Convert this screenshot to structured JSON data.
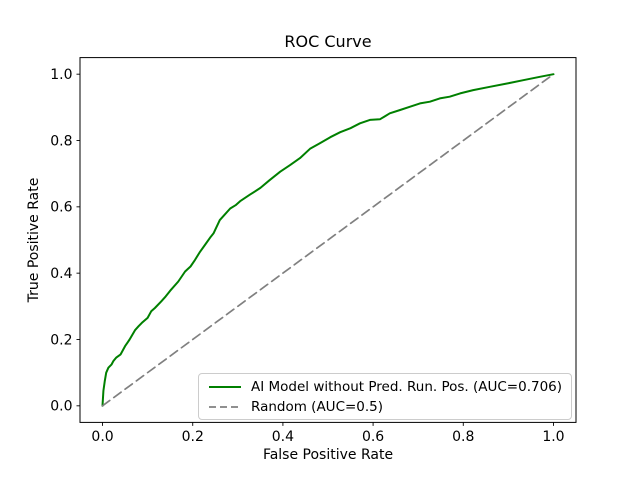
{
  "chart_data": {
    "type": "line",
    "title": "ROC Curve",
    "xlabel": "False Positive Rate",
    "ylabel": "True Positive Rate",
    "xlim": [
      -0.05,
      1.05
    ],
    "ylim": [
      -0.05,
      1.05
    ],
    "xticks": {
      "values": [
        0.0,
        0.2,
        0.4,
        0.6,
        0.8,
        1.0
      ],
      "labels": [
        "0.0",
        "0.2",
        "0.4",
        "0.6",
        "0.8",
        "1.0"
      ]
    },
    "yticks": {
      "values": [
        0.0,
        0.2,
        0.4,
        0.6,
        0.8,
        1.0
      ],
      "labels": [
        "0.0",
        "0.2",
        "0.4",
        "0.6",
        "0.8",
        "1.0"
      ]
    },
    "grid": false,
    "legend": {
      "position": "lower right inside axes",
      "border_color": "#cccccc",
      "background": "#ffffff"
    },
    "series": [
      {
        "name": "AI Model without Pred. Run. Pos. (AUC=0.706)",
        "auc": 0.706,
        "color": "#008000",
        "line_style": "solid",
        "line_width": 2,
        "points": [
          [
            0.0,
            0.0
          ],
          [
            0.002,
            0.045
          ],
          [
            0.005,
            0.075
          ],
          [
            0.008,
            0.1
          ],
          [
            0.013,
            0.115
          ],
          [
            0.02,
            0.125
          ],
          [
            0.024,
            0.135
          ],
          [
            0.03,
            0.145
          ],
          [
            0.04,
            0.155
          ],
          [
            0.05,
            0.18
          ],
          [
            0.06,
            0.2
          ],
          [
            0.072,
            0.228
          ],
          [
            0.08,
            0.24
          ],
          [
            0.087,
            0.25
          ],
          [
            0.1,
            0.265
          ],
          [
            0.108,
            0.285
          ],
          [
            0.116,
            0.295
          ],
          [
            0.13,
            0.315
          ],
          [
            0.14,
            0.33
          ],
          [
            0.15,
            0.347
          ],
          [
            0.168,
            0.375
          ],
          [
            0.183,
            0.405
          ],
          [
            0.195,
            0.42
          ],
          [
            0.205,
            0.44
          ],
          [
            0.215,
            0.462
          ],
          [
            0.227,
            0.485
          ],
          [
            0.24,
            0.51
          ],
          [
            0.246,
            0.52
          ],
          [
            0.26,
            0.56
          ],
          [
            0.27,
            0.575
          ],
          [
            0.283,
            0.595
          ],
          [
            0.295,
            0.605
          ],
          [
            0.305,
            0.617
          ],
          [
            0.327,
            0.637
          ],
          [
            0.35,
            0.657
          ],
          [
            0.37,
            0.68
          ],
          [
            0.394,
            0.706
          ],
          [
            0.416,
            0.726
          ],
          [
            0.438,
            0.747
          ],
          [
            0.46,
            0.775
          ],
          [
            0.48,
            0.79
          ],
          [
            0.505,
            0.81
          ],
          [
            0.527,
            0.825
          ],
          [
            0.55,
            0.837
          ],
          [
            0.571,
            0.852
          ],
          [
            0.593,
            0.862
          ],
          [
            0.615,
            0.864
          ],
          [
            0.625,
            0.872
          ],
          [
            0.637,
            0.882
          ],
          [
            0.66,
            0.892
          ],
          [
            0.682,
            0.902
          ],
          [
            0.704,
            0.912
          ],
          [
            0.726,
            0.917
          ],
          [
            0.748,
            0.927
          ],
          [
            0.77,
            0.932
          ],
          [
            0.793,
            0.942
          ],
          [
            0.822,
            0.952
          ],
          [
            0.859,
            0.962
          ],
          [
            0.897,
            0.972
          ],
          [
            0.933,
            0.982
          ],
          [
            0.97,
            0.992
          ],
          [
            1.0,
            1.0
          ]
        ]
      },
      {
        "name": "Random (AUC=0.5)",
        "auc": 0.5,
        "color": "#808080",
        "line_style": "dashed",
        "line_width": 1.7,
        "points": [
          [
            0.0,
            0.0
          ],
          [
            1.0,
            1.0
          ]
        ]
      }
    ]
  }
}
